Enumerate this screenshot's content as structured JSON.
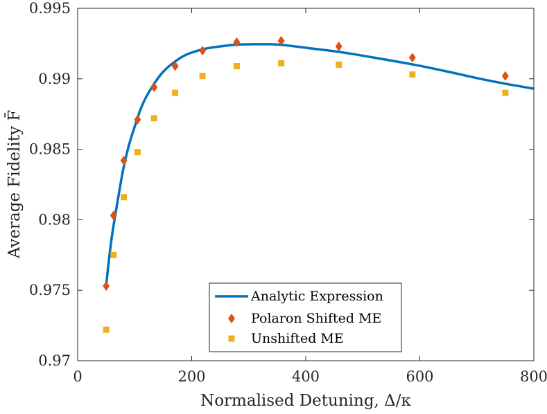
{
  "chart_data": {
    "type": "scatter",
    "title": "",
    "xlabel": "Normalised Detuning, Δ/κ",
    "ylabel": "Average Fidelity F̄",
    "xlim": [
      0,
      800
    ],
    "ylim": [
      0.97,
      0.995
    ],
    "x_ticks": [
      0,
      200,
      400,
      600,
      800
    ],
    "x_tick_labels": [
      "0",
      "200",
      "400",
      "600",
      "800"
    ],
    "y_ticks": [
      0.97,
      0.975,
      0.98,
      0.985,
      0.99,
      0.995
    ],
    "y_tick_labels": [
      "0.97",
      "0.975",
      "0.98",
      "0.985",
      "0.99",
      "0.995"
    ],
    "grid": false,
    "legend_position": "bottom-center",
    "series": [
      {
        "name": "Analytic Expression",
        "kind": "line",
        "color": "#0072BD",
        "x": [
          50,
          55,
          60,
          65,
          70,
          80,
          90,
          100,
          110,
          120,
          135,
          150,
          170,
          190,
          220,
          250,
          280,
          310,
          340,
          360,
          400,
          460,
          520,
          590,
          650,
          700,
          750,
          800
        ],
        "y": [
          0.9753,
          0.9772,
          0.9788,
          0.9801,
          0.9813,
          0.9836,
          0.9853,
          0.9866,
          0.9878,
          0.9887,
          0.9897,
          0.9905,
          0.9912,
          0.9917,
          0.9921,
          0.9923,
          0.99243,
          0.99245,
          0.99245,
          0.9924,
          0.9922,
          0.9919,
          0.9915,
          0.991,
          0.9905,
          0.99005,
          0.98965,
          0.9893
        ]
      },
      {
        "name": "Polaron Shifted ME",
        "kind": "marker",
        "marker": "diamond",
        "color": "#D95319",
        "x": [
          50,
          63,
          81,
          105,
          134,
          171,
          219,
          279,
          357,
          458,
          587,
          750
        ],
        "y": [
          0.9753,
          0.9803,
          0.9842,
          0.9871,
          0.9894,
          0.9909,
          0.992,
          0.9926,
          0.9927,
          0.9923,
          0.9915,
          0.9902
        ]
      },
      {
        "name": "Unshifted ME",
        "kind": "marker",
        "marker": "square",
        "color": "#EDB120",
        "x": [
          50,
          63,
          81,
          105,
          134,
          171,
          219,
          279,
          357,
          458,
          587,
          750
        ],
        "y": [
          0.9722,
          0.9775,
          0.9816,
          0.9848,
          0.9872,
          0.989,
          0.9902,
          0.9909,
          0.9911,
          0.991,
          0.9903,
          0.989
        ]
      }
    ]
  }
}
